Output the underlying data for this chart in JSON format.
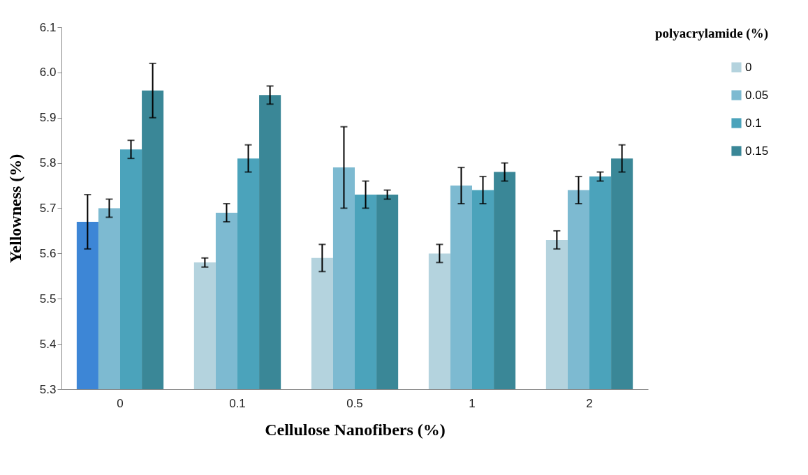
{
  "chart_data": {
    "type": "bar",
    "xlabel": "Cellulose Nanofibers (%)",
    "ylabel": "Yellowness (%)",
    "legend_title": "polyacrylamide (%)",
    "legend": "top right",
    "grid": false,
    "categories": [
      "0",
      "0.1",
      "0.5",
      "1",
      "2"
    ],
    "ylim": [
      5.3,
      6.1
    ],
    "yticks": [
      5.3,
      5.4,
      5.5,
      5.6,
      5.7,
      5.8,
      5.9,
      {
        "value": 6.0,
        "label": "6.0"
      },
      6.1
    ],
    "series": [
      {
        "name": "0",
        "color": "#b4d3de",
        "colors": [
          "#3d86d6",
          "#b4d3de",
          "#b4d3de",
          "#b4d3de",
          "#b4d3de"
        ],
        "values": [
          5.67,
          5.58,
          5.59,
          5.6,
          5.63
        ],
        "errors": [
          0.06,
          0.01,
          0.03,
          0.02,
          0.02
        ]
      },
      {
        "name": "0.05",
        "color": "#7dbad1",
        "values": [
          5.7,
          5.69,
          5.79,
          5.75,
          5.74
        ],
        "errors": [
          0.02,
          0.02,
          0.09,
          0.04,
          0.03
        ]
      },
      {
        "name": "0.1",
        "color": "#4ba3bb",
        "values": [
          5.83,
          5.81,
          5.73,
          5.74,
          5.77
        ],
        "errors": [
          0.02,
          0.03,
          0.03,
          0.03,
          0.01
        ]
      },
      {
        "name": "0.15",
        "color": "#3a8797",
        "values": [
          5.96,
          5.95,
          5.73,
          5.78,
          5.81
        ],
        "errors": [
          0.06,
          0.02,
          0.01,
          0.02,
          0.03
        ]
      }
    ]
  }
}
